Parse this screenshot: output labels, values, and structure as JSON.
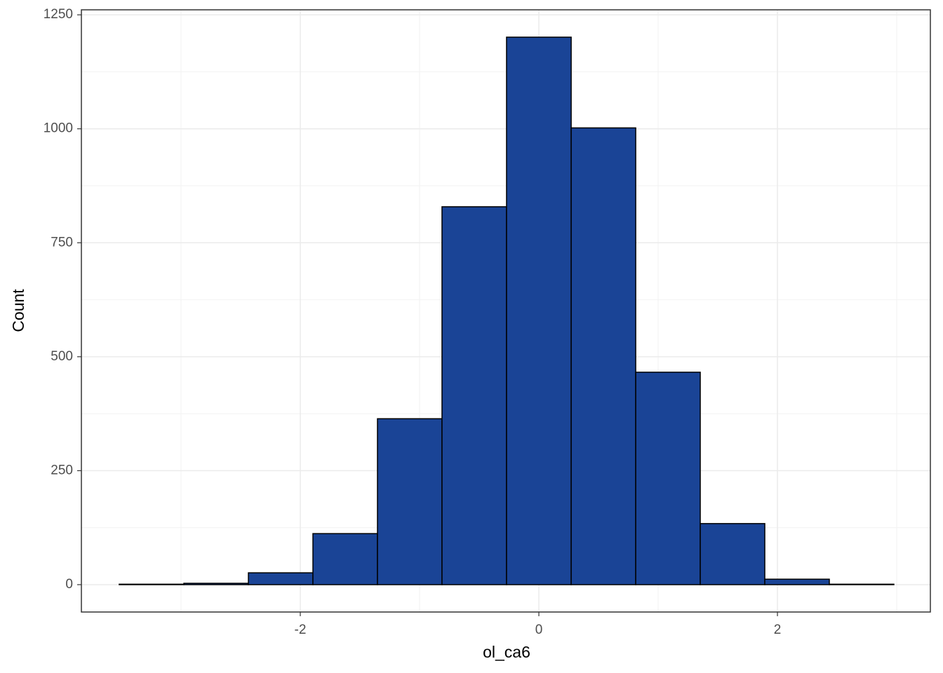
{
  "chart_data": {
    "type": "histogram",
    "x_label": "ol_ca6",
    "y_label": "Count",
    "bins": [
      -3.518,
      -2.976,
      -2.435,
      -1.894,
      -1.353,
      -0.812,
      -0.271,
      0.271,
      0.812,
      1.353,
      1.894,
      2.435,
      2.976
    ],
    "counts": [
      1,
      3,
      26,
      112,
      364,
      829,
      1201,
      1002,
      466,
      134,
      12,
      1
    ],
    "color": "#1a4496",
    "xlim": [
      -3.835,
      3.282
    ],
    "ylim": [
      -60,
      1261
    ],
    "xticks": [
      -2,
      0,
      2
    ],
    "yticks": [
      0,
      250,
      500,
      750,
      1000,
      1250
    ],
    "grid": true
  }
}
